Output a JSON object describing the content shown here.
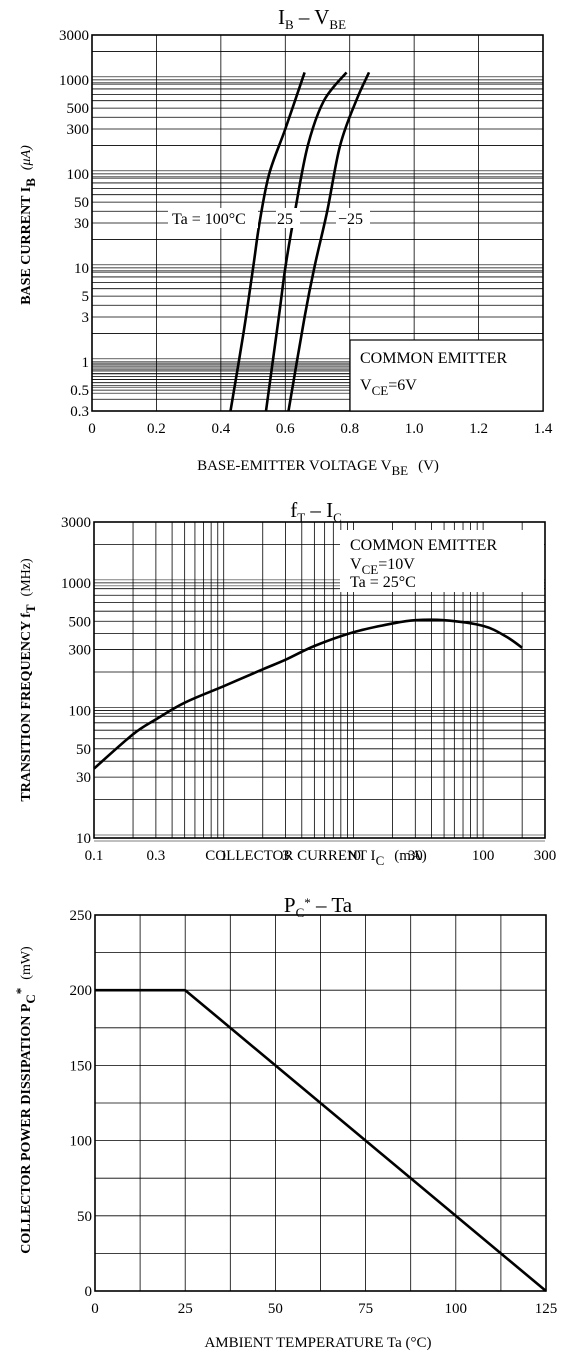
{
  "chart_data": [
    {
      "type": "line",
      "title_main": "I",
      "title_main_sub": "B",
      "title_sep": " – ",
      "title_second": "V",
      "title_second_sub": "BE",
      "xlabel_main": "BASE-EMITTER VOLTAGE  V",
      "xlabel_sub": "BE",
      "xlabel_unit": "(V)",
      "ylabel_main": "BASE CURRENT  I",
      "ylabel_sub": "B",
      "ylabel_unit": "(μA)",
      "x_scale": "linear",
      "y_scale": "log",
      "xlim": [
        0,
        1.4
      ],
      "ylim": [
        0.3,
        3000
      ],
      "grid": true,
      "x_ticks": [
        "0",
        "0.2",
        "0.4",
        "0.6",
        "0.8",
        "1.0",
        "1.2",
        "1.4"
      ],
      "y_ticks": [
        "3000",
        "1000",
        "500",
        "300",
        "100",
        "50",
        "30",
        "10",
        "5",
        "3",
        "1",
        "0.5",
        "0.3"
      ],
      "annotation_lines": [
        "COMMON EMITTER"
      ],
      "annotation_vce_main": "V",
      "annotation_vce_sub": "CE",
      "annotation_vce_value": "=6V",
      "series": [
        {
          "name": "Ta=100°C",
          "x": [
            0.43,
            0.47,
            0.5,
            0.52,
            0.55,
            0.6,
            0.66
          ],
          "y": [
            0.3,
            2,
            10,
            30,
            100,
            300,
            1200
          ]
        },
        {
          "name": "25",
          "x": [
            0.54,
            0.58,
            0.6,
            0.63,
            0.67,
            0.72,
            0.79
          ],
          "y": [
            0.3,
            3,
            10,
            40,
            200,
            600,
            1200
          ]
        },
        {
          "name": "-25",
          "x": [
            0.61,
            0.66,
            0.69,
            0.73,
            0.77,
            0.82,
            0.86
          ],
          "y": [
            0.3,
            3,
            10,
            40,
            200,
            600,
            1200
          ]
        }
      ],
      "series_labels": [
        "Ta = 100°C",
        "25",
        "−25"
      ]
    },
    {
      "type": "line",
      "title_main": "f",
      "title_main_sub": "T",
      "title_sep": " – ",
      "title_second": "I",
      "title_second_sub": "C",
      "xlabel_main": "COLLECTOR CURRENT  I",
      "xlabel_sub": "C",
      "xlabel_unit": "(mA)",
      "ylabel_main": "TRANSITION FREQUENCY  f",
      "ylabel_sub": "T",
      "ylabel_unit": "(MHz)",
      "x_scale": "log",
      "y_scale": "log",
      "xlim": [
        0.1,
        300
      ],
      "ylim": [
        10,
        3000
      ],
      "grid": true,
      "x_ticks": [
        "0.1",
        "0.3",
        "1",
        "3",
        "10",
        "30",
        "100",
        "300"
      ],
      "y_ticks": [
        "3000",
        "1000",
        "500",
        "300",
        "100",
        "50",
        "30",
        "10"
      ],
      "annotation_lines": [
        "COMMON EMITTER"
      ],
      "annotation_vce_main": "V",
      "annotation_vce_sub": "CE",
      "annotation_vce_value": "=10V",
      "annotation_ta": "Ta = 25°C",
      "series": [
        {
          "name": "fT",
          "x": [
            0.1,
            0.2,
            0.3,
            0.5,
            1,
            2,
            3,
            5,
            10,
            20,
            30,
            50,
            100,
            150,
            200
          ],
          "y": [
            35,
            65,
            85,
            115,
            155,
            210,
            250,
            320,
            410,
            480,
            510,
            510,
            460,
            380,
            310
          ]
        }
      ]
    },
    {
      "type": "line",
      "title_main": "P",
      "title_main_sub": "C",
      "title_star": "*",
      "title_sep": " – ",
      "title_second": "Ta",
      "xlabel_text": "AMBIENT TEMPERATURE  Ta  (°C)",
      "ylabel_main": "COLLECTOR POWER DISSIPATION  P",
      "ylabel_sub": "C",
      "ylabel_star": "*",
      "ylabel_unit": "(mW)",
      "x_scale": "linear",
      "y_scale": "linear",
      "xlim": [
        0,
        125
      ],
      "ylim": [
        0,
        250
      ],
      "grid": true,
      "x_ticks": [
        "0",
        "25",
        "50",
        "75",
        "100",
        "125"
      ],
      "y_ticks": [
        "250",
        "200",
        "150",
        "100",
        "50",
        "0"
      ],
      "series": [
        {
          "name": "PC*",
          "x": [
            0,
            25,
            125
          ],
          "y": [
            200,
            200,
            0
          ]
        }
      ]
    }
  ]
}
